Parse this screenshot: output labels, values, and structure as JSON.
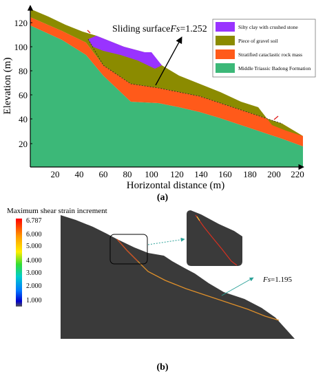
{
  "panel_a": {
    "label": "(a)",
    "x_axis": {
      "label": "Horizontal distance (m)",
      "ticks": [
        "20",
        "40",
        "60",
        "80",
        "100",
        "120",
        "140",
        "160",
        "180",
        "200",
        "220"
      ]
    },
    "y_axis": {
      "label": "Elevation (m)",
      "ticks": [
        "20",
        "40",
        "60",
        "80",
        "100",
        "120"
      ]
    },
    "annotation": {
      "text": "Sliding surface",
      "fs_symbol": "Fs",
      "fs_value": "=1.252"
    },
    "legend": [
      {
        "label": "Silty clay with crushed stone",
        "color": "#9933ff"
      },
      {
        "label": "Piece of gravel soil",
        "color": "#8b8b00"
      },
      {
        "label": "Stratified cataclastic rock mass",
        "color": "#ff5a1a"
      },
      {
        "label": "Middle Triassic Badong Formation",
        "color": "#3cb878"
      }
    ]
  },
  "panel_b": {
    "label": "(b)",
    "colorbar": {
      "title": "Maximum shear strain increment",
      "ticks": [
        "6.787",
        "6.000",
        "5.000",
        "4.000",
        "3.000",
        "2.000",
        "1.000"
      ]
    },
    "annotation": {
      "fs_symbol": "Fs",
      "fs_value": "=1.195"
    }
  }
}
